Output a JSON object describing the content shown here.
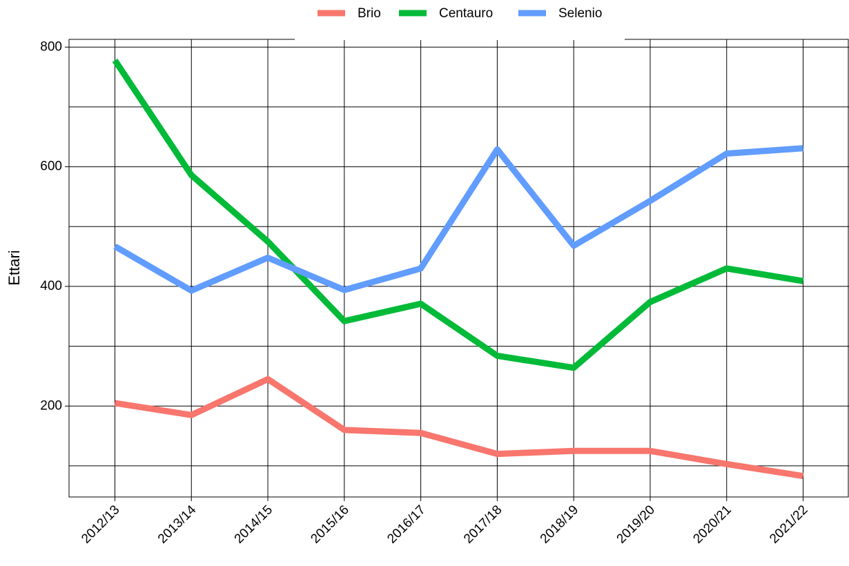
{
  "chart_data": {
    "type": "line",
    "y_label": "Ettari",
    "categories": [
      "2012/13",
      "2013/14",
      "2014/15",
      "2015/16",
      "2016/17",
      "2017/18",
      "2018/19",
      "2019/20",
      "2020/21",
      "2021/22"
    ],
    "series": [
      {
        "name": "Brio",
        "color": "#F8766D",
        "values": [
          205,
          185,
          245,
          160,
          155,
          120,
          125,
          125,
          103,
          83
        ]
      },
      {
        "name": "Centauro",
        "color": "#00BA38",
        "values": [
          778,
          586,
          475,
          342,
          371,
          284,
          264,
          374,
          430,
          409
        ]
      },
      {
        "name": "Selenio",
        "color": "#619CFF",
        "values": [
          467,
          393,
          448,
          394,
          430,
          629,
          468,
          543,
          622,
          631
        ]
      }
    ],
    "ylim": [
      48,
      813
    ],
    "yticks": [
      200,
      400,
      600,
      800
    ],
    "yticks_minor": [
      100,
      300,
      500,
      700
    ],
    "grid": true,
    "legend": "top"
  }
}
